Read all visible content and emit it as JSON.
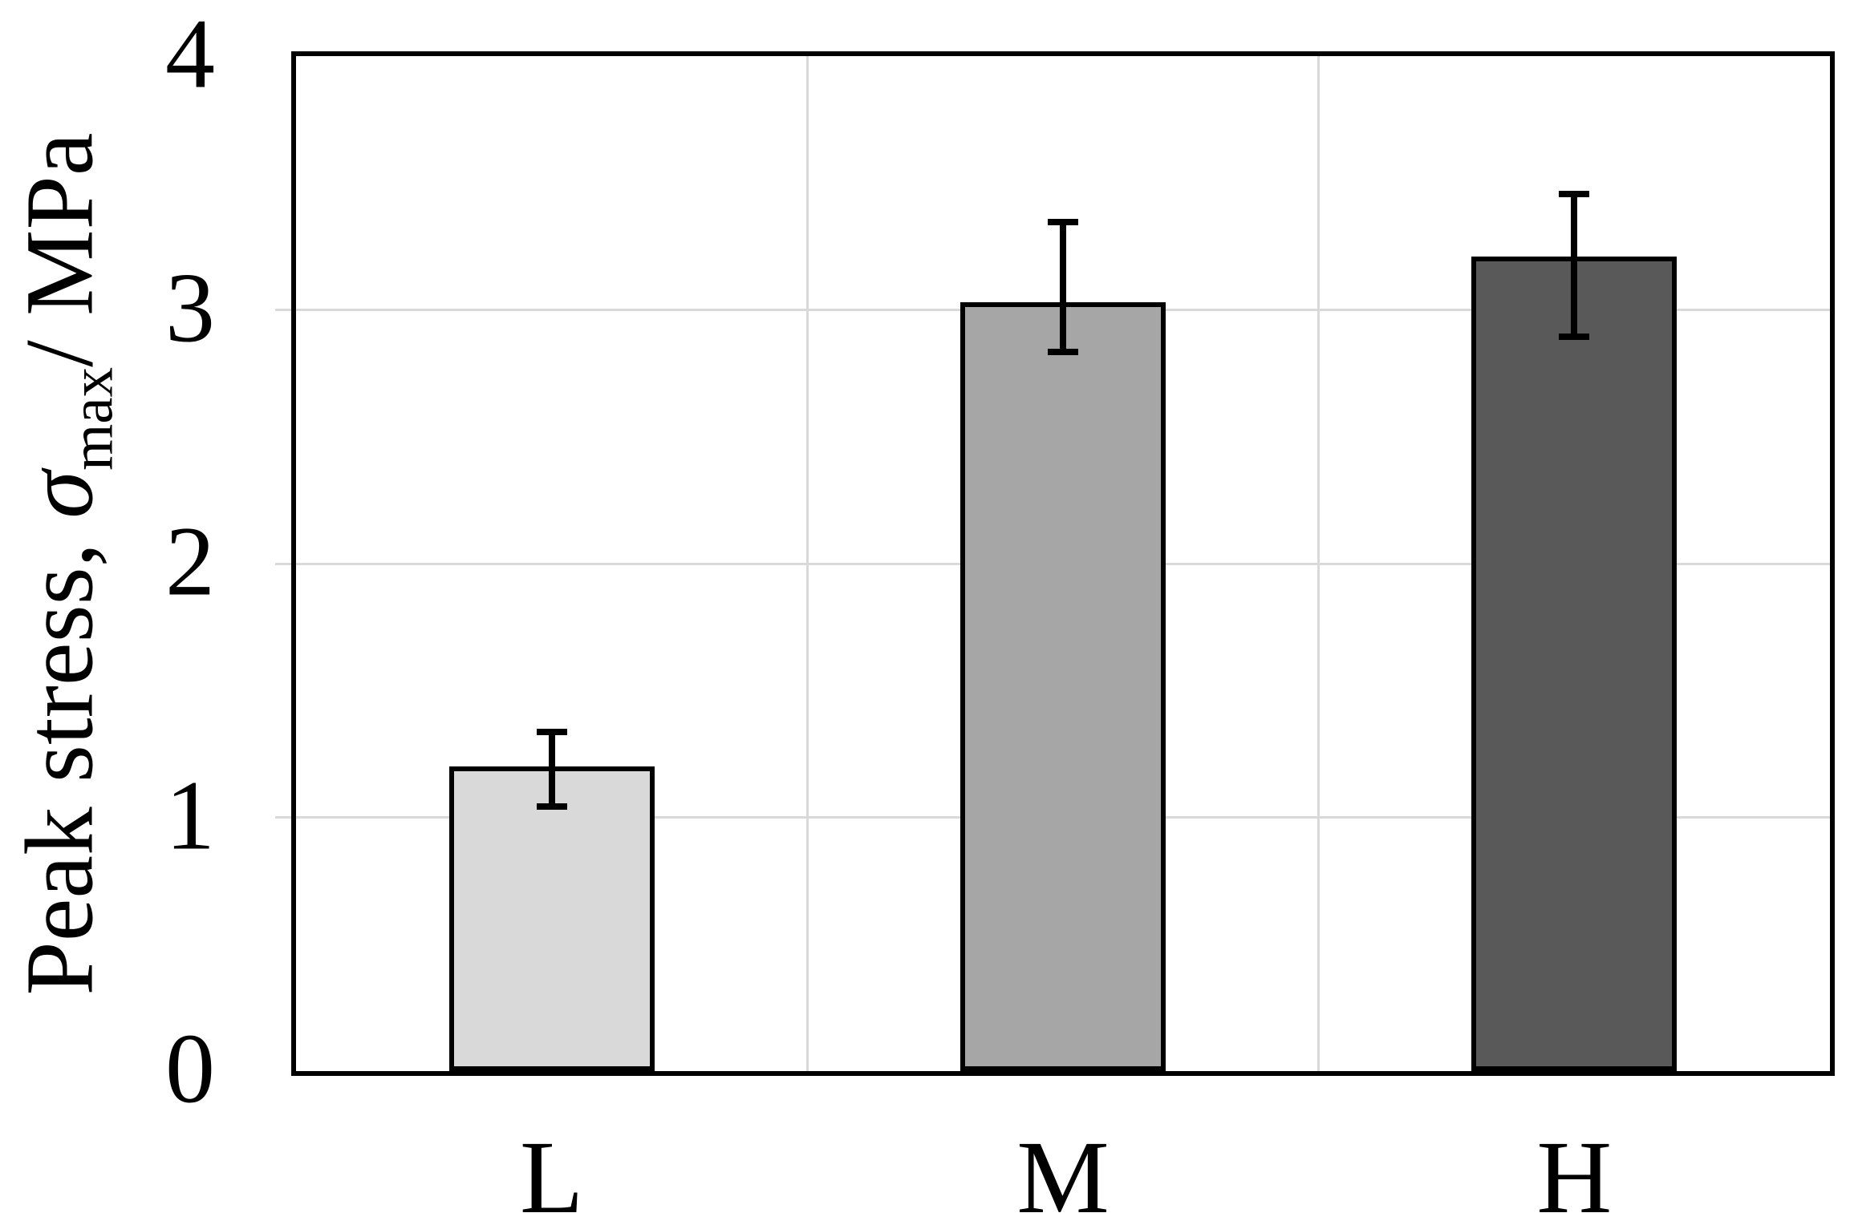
{
  "chart_data": {
    "type": "bar",
    "title": "",
    "categories": [
      "L",
      "M",
      "H"
    ],
    "values": [
      1.2,
      3.03,
      3.21
    ],
    "error_high": [
      1.35,
      3.36,
      3.47
    ],
    "error_low": [
      1.03,
      2.82,
      2.88
    ],
    "bar_colors": [
      "#d9d9d9",
      "#a6a6a6",
      "#595959"
    ],
    "bar_border_color": "#000000",
    "error_bar_color": "#000000",
    "xlabel": "",
    "ylabel": "Peak stress, σmax/ MPa",
    "ylabel_parts": {
      "prefix": "Peak stress, ",
      "symbol": "σ",
      "subscript": "max",
      "unit": "/ MPa"
    },
    "ylim": [
      0,
      4
    ],
    "yticks": [
      0,
      1,
      2,
      3,
      4
    ],
    "grid": {
      "horizontal_at": [
        1,
        2,
        3
      ],
      "vertical_at_category_boundaries": true,
      "color": "#d9d9d9"
    },
    "legend": "none",
    "plot_border_color": "#000000",
    "background_color": "#ffffff"
  }
}
